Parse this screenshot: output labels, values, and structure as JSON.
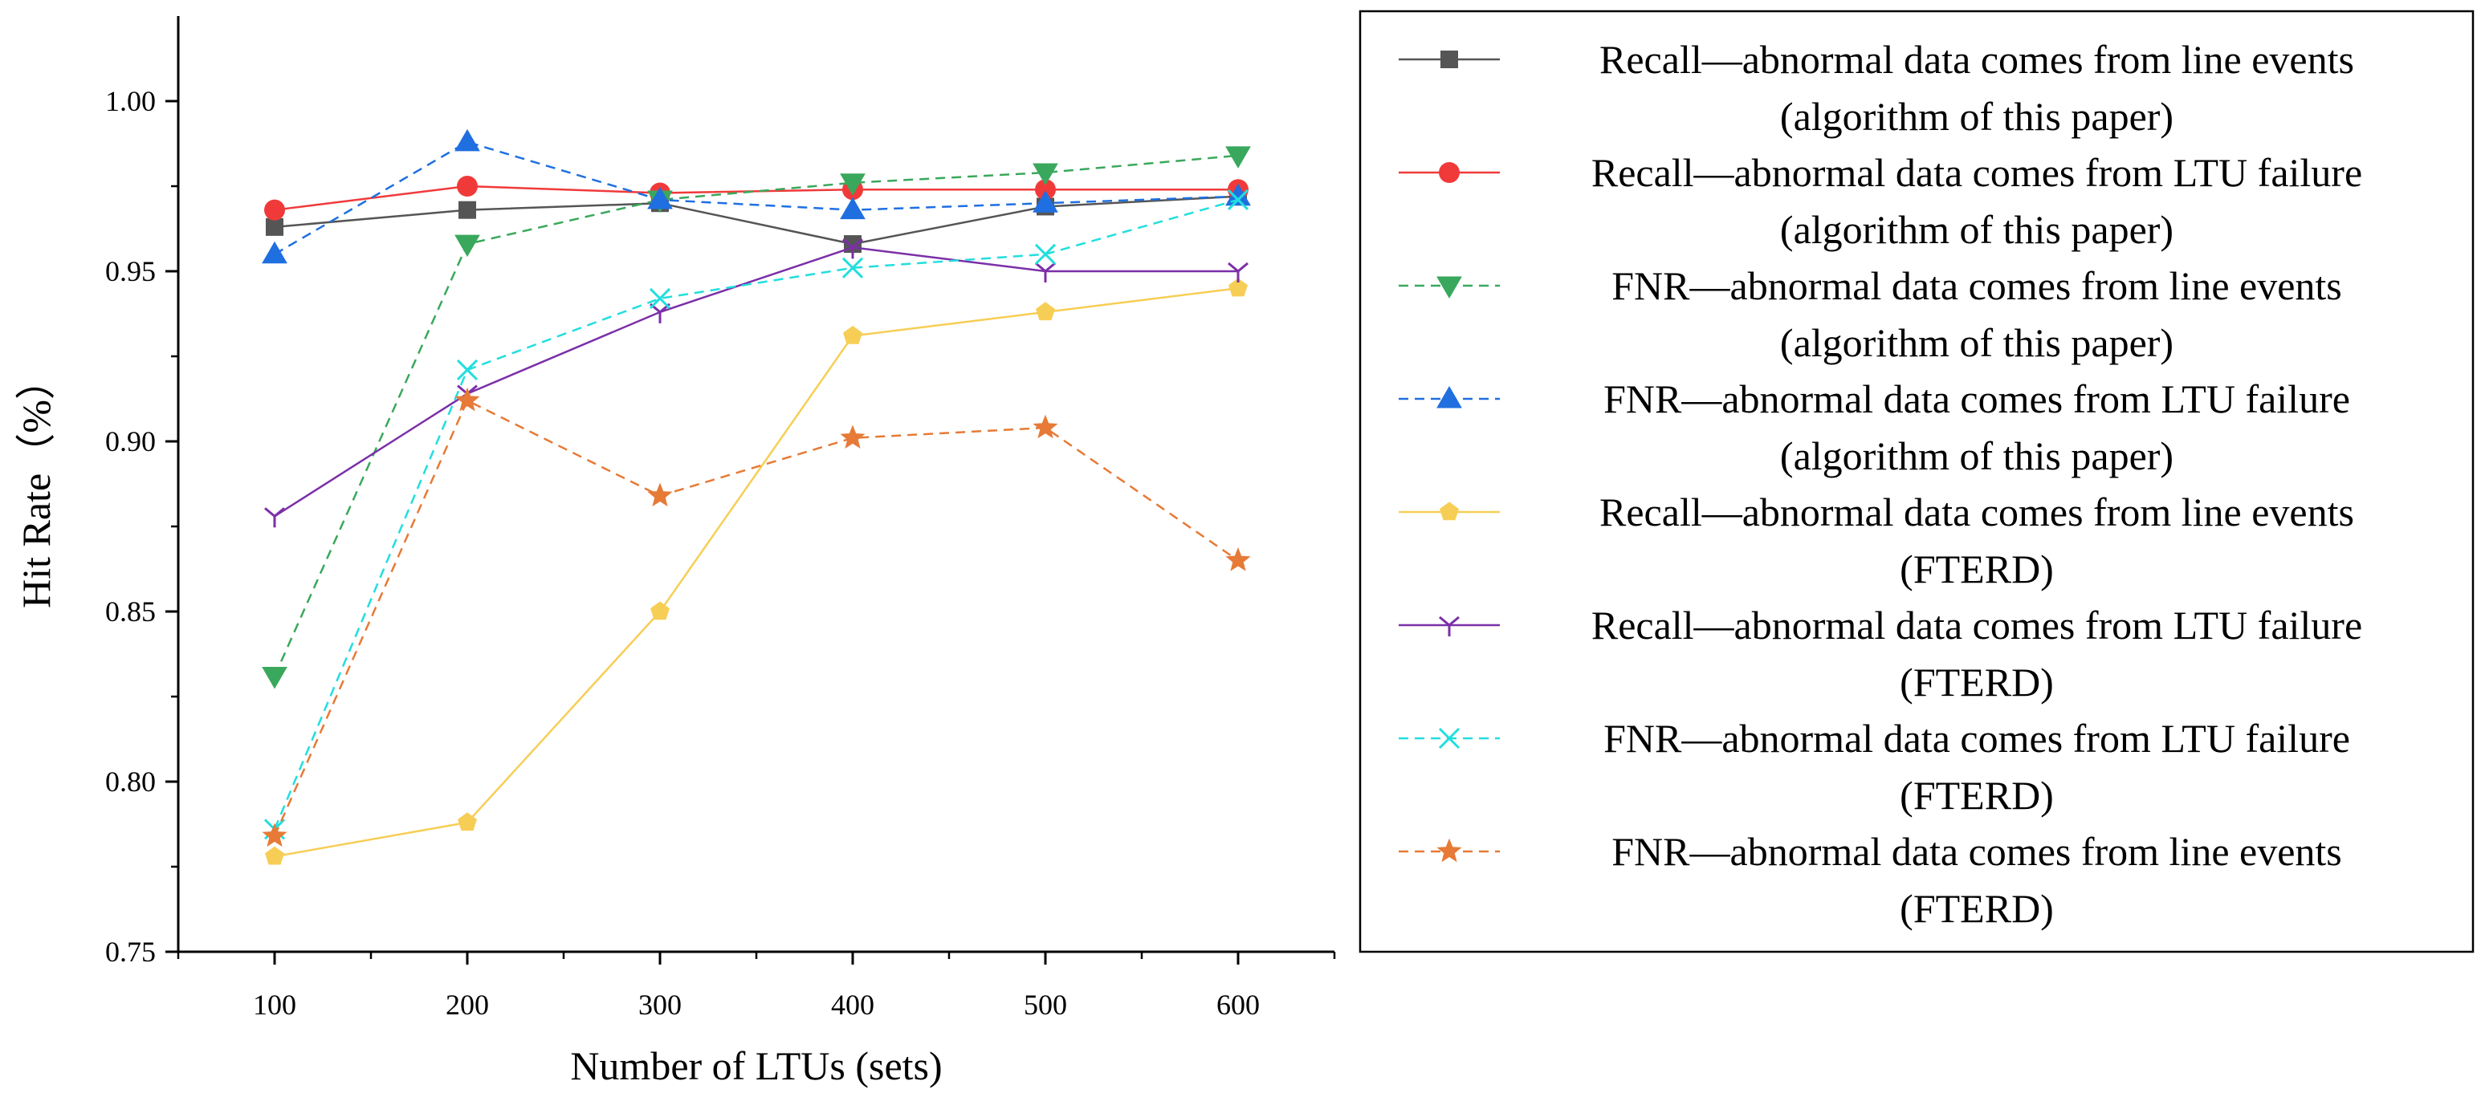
{
  "chart_data": {
    "type": "line",
    "title": "",
    "xlabel": "Number of LTUs (sets)",
    "ylabel": "Hit Rate（%）",
    "x": [
      100,
      200,
      300,
      400,
      500,
      600
    ],
    "xlim": [
      50,
      650
    ],
    "ylim": [
      0.75,
      1.025
    ],
    "xticks": [
      "100",
      "200",
      "300",
      "400",
      "500",
      "600"
    ],
    "yticks": [
      "0.75",
      "0.80",
      "0.85",
      "0.90",
      "0.95",
      "1.00"
    ],
    "grid": false,
    "legend_position": "right",
    "series": [
      {
        "name": "Recall—abnormal data comes from line events",
        "name2": "(algorithm of this paper)",
        "color": "#555555",
        "marker": "square",
        "dashed": false,
        "values": [
          0.963,
          0.968,
          0.97,
          0.958,
          0.969,
          0.972
        ]
      },
      {
        "name": "Recall—abnormal data comes from LTU failure",
        "name2": "(algorithm of this paper)",
        "color": "#f03a3a",
        "marker": "circle",
        "dashed": false,
        "values": [
          0.968,
          0.975,
          0.973,
          0.974,
          0.974,
          0.974
        ]
      },
      {
        "name": "FNR—abnormal data comes from line events",
        "name2": "(algorithm of this paper)",
        "color": "#3aa85c",
        "marker": "triangle-down",
        "dashed": true,
        "values": [
          0.831,
          0.958,
          0.971,
          0.976,
          0.979,
          0.984
        ]
      },
      {
        "name": "FNR—abnormal data comes from LTU failure",
        "name2": "(algorithm of this paper)",
        "color": "#1f6fe0",
        "marker": "triangle-up",
        "dashed": true,
        "values": [
          0.955,
          0.988,
          0.971,
          0.968,
          0.97,
          0.972
        ]
      },
      {
        "name": "Recall—abnormal data comes from line events",
        "name2": "(FTERD)",
        "color": "#f7ce55",
        "marker": "pentagon",
        "dashed": false,
        "values": [
          0.778,
          0.788,
          0.85,
          0.931,
          0.938,
          0.945
        ]
      },
      {
        "name": "Recall—abnormal data comes from LTU failure",
        "name2": "(FTERD)",
        "color": "#7b2fa8",
        "marker": "tri-y",
        "dashed": false,
        "values": [
          0.878,
          0.914,
          0.938,
          0.957,
          0.95,
          0.95
        ]
      },
      {
        "name": "FNR—abnormal data comes from LTU failure",
        "name2": "(FTERD)",
        "color": "#22dede",
        "marker": "x",
        "dashed": true,
        "values": [
          0.786,
          0.921,
          0.942,
          0.951,
          0.955,
          0.971
        ]
      },
      {
        "name": "FNR—abnormal data comes from line events",
        "name2": "(FTERD)",
        "color": "#e67a36",
        "marker": "star",
        "dashed": true,
        "values": [
          0.784,
          0.912,
          0.884,
          0.901,
          0.904,
          0.865
        ]
      }
    ]
  }
}
